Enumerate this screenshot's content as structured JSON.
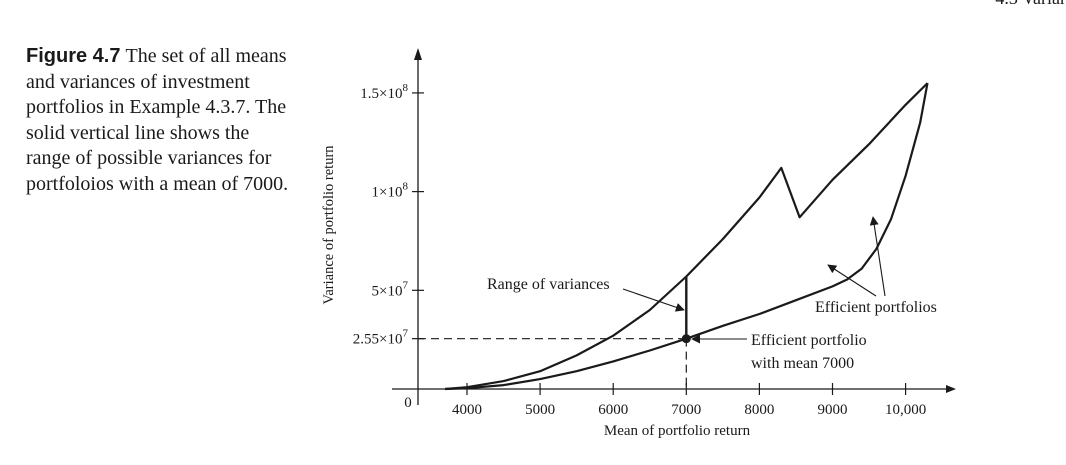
{
  "page_header": "4.3 Variar",
  "caption": {
    "label": "Figure 4.7",
    "text": "The set of all means and variances of investment portfolios in Example 4.3.7. The solid vertical line shows the range of possible variances for portfoloios with a mean of 7000."
  },
  "chart_data": {
    "type": "line",
    "xlabel": "Mean of portfolio return",
    "ylabel": "Variance of portfolio return",
    "origin_label": "0",
    "x_ticks": [
      {
        "value": 4000,
        "label": "4000"
      },
      {
        "value": 5000,
        "label": "5000"
      },
      {
        "value": 6000,
        "label": "6000"
      },
      {
        "value": 7000,
        "label": "7000"
      },
      {
        "value": 8000,
        "label": "8000"
      },
      {
        "value": 9000,
        "label": "9000"
      },
      {
        "value": 10000,
        "label": "10,000"
      }
    ],
    "y_ticks": [
      {
        "value": 25500000,
        "mantissa": "2.55×10",
        "exponent": "7"
      },
      {
        "value": 50000000,
        "mantissa": "5×10",
        "exponent": "7"
      },
      {
        "value": 100000000,
        "mantissa": "1×10",
        "exponent": "8"
      },
      {
        "value": 150000000,
        "mantissa": "1.5×10",
        "exponent": "8"
      }
    ],
    "xlim": [
      3000,
      10600
    ],
    "ylim": [
      0,
      163000000
    ],
    "series": [
      {
        "role": "upper-boundary",
        "points": [
          [
            3700,
            0
          ],
          [
            4000,
            900000
          ],
          [
            4500,
            4000000
          ],
          [
            5000,
            9000000
          ],
          [
            5500,
            17000000
          ],
          [
            6000,
            27000000
          ],
          [
            6500,
            40000000
          ],
          [
            7000,
            57000000
          ],
          [
            7500,
            76000000
          ],
          [
            8000,
            97000000
          ],
          [
            8300,
            112000000
          ],
          [
            8550,
            87000000
          ],
          [
            9000,
            106000000
          ],
          [
            9500,
            124000000
          ],
          [
            10000,
            144000000
          ],
          [
            10300,
            155000000
          ]
        ]
      },
      {
        "role": "lower-boundary",
        "points": [
          [
            3700,
            0
          ],
          [
            4000,
            400000
          ],
          [
            4500,
            2000000
          ],
          [
            5000,
            5000000
          ],
          [
            5500,
            9000000
          ],
          [
            6000,
            14000000
          ],
          [
            6500,
            19500000
          ],
          [
            7000,
            25500000
          ],
          [
            7500,
            32000000
          ],
          [
            8000,
            38000000
          ],
          [
            8500,
            45000000
          ],
          [
            9000,
            52000000
          ],
          [
            9200,
            55500000
          ],
          [
            9400,
            61000000
          ],
          [
            9600,
            71000000
          ],
          [
            9800,
            86000000
          ],
          [
            10000,
            108000000
          ],
          [
            10200,
            135000000
          ],
          [
            10300,
            155000000
          ]
        ]
      }
    ],
    "range_segment": {
      "x": 7000,
      "y_low": 25500000,
      "y_high": 57000000
    },
    "highlight_point": {
      "x": 7000,
      "y": 25500000
    },
    "annotations": {
      "range_label": "Range of variances",
      "efficient_label": "Efficient portfolios",
      "point_label_line1": "Efficient portfolio",
      "point_label_line2": "with mean 7000"
    },
    "grid": false,
    "legend": "none"
  }
}
